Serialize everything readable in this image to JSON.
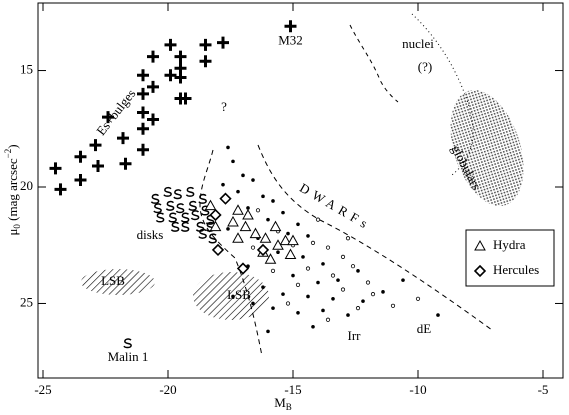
{
  "chart_data": {
    "type": "scatter",
    "x_label_parts": [
      "M",
      "B"
    ],
    "y_label_parts": [
      "μ",
      "0",
      " (mag arcsec",
      "−2",
      ")"
    ],
    "xlim": [
      -25.2,
      -4.2
    ],
    "ylim": [
      28.2,
      12.1
    ],
    "xticks": [
      -25,
      -20,
      -15,
      -10,
      -5
    ],
    "yticks": [
      15,
      20,
      25
    ],
    "color": "#000000",
    "series": [
      {
        "marker": "plus",
        "x": [
          -24.5,
          -24.3,
          -23.5,
          -23.5,
          -22.9,
          -22.8,
          -21.8,
          -21.7,
          -22.4,
          -21.0,
          -21.0,
          -21.0,
          -21.0,
          -21.0,
          -20.6,
          -20.6,
          -20.6,
          -19.9,
          -19.9,
          -19.5,
          -19.5,
          -19.3,
          -19.5,
          -19.5,
          -18.5,
          -18.5,
          -17.8
        ],
        "values": [
          19.2,
          20.1,
          18.7,
          19.7,
          18.2,
          19.1,
          17.9,
          19.0,
          17.0,
          15.2,
          16.0,
          16.8,
          17.5,
          18.4,
          14.4,
          15.7,
          17.1,
          13.9,
          15.2,
          15.3,
          16.2,
          16.2,
          14.9,
          14.4,
          13.9,
          14.6,
          13.8
        ]
      },
      {
        "marker": "s",
        "x": [
          -20.5,
          -20.0,
          -19.6,
          -19.1,
          -18.6,
          -20.4,
          -19.9,
          -19.5,
          -19.0,
          -18.5,
          -20.3,
          -19.8,
          -19.3,
          -18.9,
          -18.3,
          -19.7,
          -19.3,
          -18.7,
          -18.3,
          -18.6,
          -18.2
        ],
        "values": [
          20.5,
          20.2,
          20.3,
          20.2,
          20.5,
          20.9,
          20.8,
          20.9,
          20.8,
          21.0,
          21.3,
          21.3,
          21.3,
          21.2,
          21.4,
          21.7,
          21.7,
          21.7,
          21.7,
          22.0,
          22.2
        ]
      },
      {
        "marker": "dot",
        "x": [
          -17.6,
          -17.4,
          -17.0,
          -16.6,
          -17.8,
          -16.2,
          -15.8,
          -17.2,
          -16.8,
          -15.4,
          -14.8,
          -16.0,
          -15.2,
          -14.4,
          -17.6,
          -16.4,
          -15.6,
          -14.6,
          -13.8,
          -16.8,
          -15.0,
          -14.0,
          -13.2,
          -12.4,
          -16.2,
          -15.4,
          -14.4,
          -13.4,
          -12.2,
          -11.4,
          -15.8,
          -14.8,
          -13.8,
          -12.8,
          -16.0,
          -14.2,
          -10.6,
          -9.2,
          -17.4,
          -16.6
        ],
        "values": [
          18.3,
          18.9,
          19.5,
          19.7,
          19.9,
          20.4,
          20.6,
          20.2,
          20.9,
          21.1,
          21.6,
          21.4,
          22.0,
          22.1,
          21.8,
          22.2,
          22.8,
          23.0,
          23.3,
          23.4,
          23.8,
          24.1,
          24.0,
          23.6,
          24.3,
          24.6,
          24.7,
          24.8,
          24.9,
          24.5,
          25.2,
          25.4,
          25.3,
          25.5,
          26.2,
          26.0,
          24.0,
          25.5,
          24.7,
          25.0
        ]
      },
      {
        "marker": "circle",
        "x": [
          -16.4,
          -15.6,
          -14.2,
          -13.6,
          -15.0,
          -13.0,
          -12.6,
          -14.4,
          -13.4,
          -15.8,
          -12.0,
          -11.8,
          -13.0,
          -14.8,
          -12.4,
          -11.0,
          -13.6,
          -10.0,
          -15.2,
          -16.6,
          -12.8,
          -14.0
        ],
        "values": [
          21.0,
          21.9,
          22.4,
          22.6,
          22.5,
          23.0,
          23.4,
          23.5,
          23.8,
          23.6,
          24.1,
          24.6,
          24.4,
          24.2,
          25.2,
          25.1,
          25.7,
          24.8,
          25.0,
          22.6,
          22.2,
          21.4
        ]
      },
      {
        "name": "Hydra",
        "marker": "triangle",
        "x": [
          -18.3,
          -18.1,
          -17.2,
          -16.8,
          -17.4,
          -16.9,
          -16.5,
          -17.2,
          -16.1,
          -15.7,
          -15.3,
          -15.0,
          -15.6,
          -15.1,
          -16.2,
          -15.9
        ],
        "values": [
          20.8,
          21.7,
          21.0,
          21.2,
          21.5,
          21.7,
          22.0,
          22.2,
          22.2,
          21.7,
          22.3,
          22.3,
          22.5,
          22.9,
          22.8,
          23.1
        ]
      },
      {
        "name": "Hercules",
        "marker": "diamond",
        "x": [
          -17.7,
          -18.1,
          -18.0,
          -17.0,
          -16.2
        ],
        "values": [
          20.5,
          21.2,
          22.7,
          23.5,
          22.7
        ]
      }
    ],
    "labeled_points": [
      {
        "name": "M32",
        "marker": "plus",
        "x": -15.1,
        "y": 13.1
      },
      {
        "name": "Malin 1",
        "marker": "s",
        "x": -21.6,
        "y": 26.7
      }
    ],
    "annotations": [
      "Es+bulges",
      "nuclei",
      "(?)",
      "?",
      "globulars",
      "DWARFs",
      "disks",
      "LSB",
      "LSB",
      "Irr",
      "dE"
    ]
  }
}
